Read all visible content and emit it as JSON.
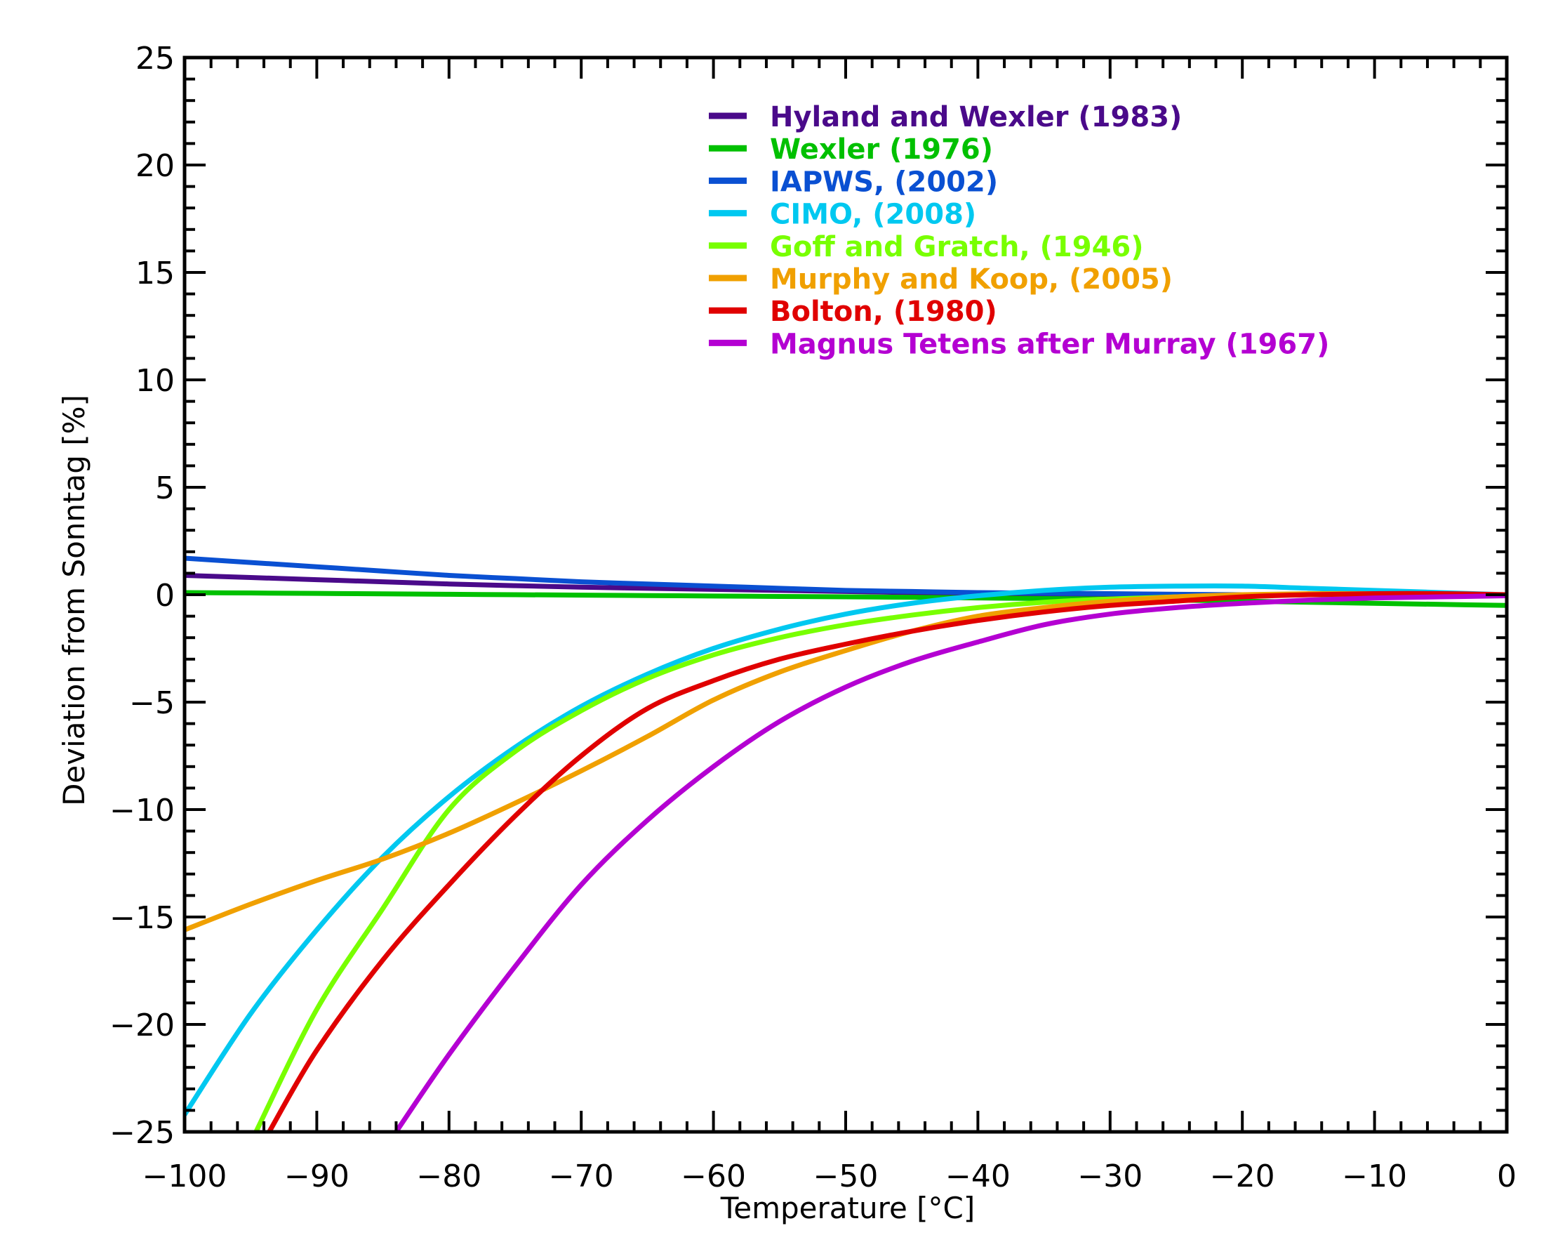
{
  "chart_data": {
    "type": "line",
    "title": "",
    "xlabel": "Temperature [°C]",
    "ylabel": "Deviation from Sonntag [%]",
    "xlim": [
      -100,
      0
    ],
    "ylim": [
      -25,
      25
    ],
    "xticks": [
      -100,
      -90,
      -80,
      -70,
      -60,
      -50,
      -40,
      -30,
      -20,
      -10,
      0
    ],
    "xtick_labels": [
      "−100",
      "−90",
      "−80",
      "−70",
      "−60",
      "−50",
      "−40",
      "−30",
      "−20",
      "−10",
      "0"
    ],
    "yticks": [
      -25,
      -20,
      -15,
      -10,
      -5,
      0,
      5,
      10,
      15,
      20,
      25
    ],
    "ytick_labels": [
      "−25",
      "−20",
      "−15",
      "−10",
      "−5",
      "0",
      "5",
      "10",
      "15",
      "20",
      "25"
    ],
    "x_minor_step": 2,
    "y_minor_step": 1,
    "grid": false,
    "legend_placement": "top-right",
    "x": [
      -100,
      -95,
      -90,
      -85,
      -80,
      -75,
      -70,
      -65,
      -60,
      -55,
      -50,
      -45,
      -40,
      -35,
      -30,
      -25,
      -20,
      -15,
      -10,
      -5,
      0
    ],
    "series": [
      {
        "name": "Hyland and Wexler (1983)",
        "color": "#4a0a8a",
        "values": [
          0.9,
          0.8,
          0.7,
          0.6,
          0.5,
          0.42,
          0.35,
          0.3,
          0.25,
          0.2,
          0.15,
          0.1,
          0.05,
          0.02,
          0,
          0,
          0,
          0,
          0,
          0,
          0
        ]
      },
      {
        "name": "Wexler (1976)",
        "color": "#00c000",
        "values": [
          0.1,
          0.08,
          0.06,
          0.04,
          0.02,
          0,
          -0.02,
          -0.04,
          -0.06,
          -0.08,
          -0.1,
          -0.12,
          -0.15,
          -0.18,
          -0.2,
          -0.25,
          -0.3,
          -0.35,
          -0.4,
          -0.45,
          -0.5
        ]
      },
      {
        "name": "IAPWS, (2002)",
        "color": "#0a50d2",
        "values": [
          1.7,
          1.5,
          1.3,
          1.1,
          0.9,
          0.75,
          0.6,
          0.5,
          0.4,
          0.3,
          0.2,
          0.15,
          0.1,
          0.07,
          0.05,
          0.02,
          0,
          0,
          0,
          0,
          0
        ]
      },
      {
        "name": "CIMO, (2008)",
        "color": "#00c8f0",
        "values": [
          -24.2,
          -19.5,
          -15.6,
          -12.2,
          -9.4,
          -7.1,
          -5.2,
          -3.7,
          -2.5,
          -1.6,
          -0.9,
          -0.4,
          -0.05,
          0.2,
          0.35,
          0.4,
          0.4,
          0.3,
          0.2,
          0.1,
          0
        ]
      },
      {
        "name": "Goff and Gratch, (1946)",
        "color": "#78ff00",
        "start": [
          -94.6,
          -25
        ],
        "values": [
          null,
          null,
          -19.3,
          -14.6,
          -10.0,
          -7.3,
          -5.4,
          -3.9,
          -2.8,
          -2.0,
          -1.4,
          -0.95,
          -0.6,
          -0.35,
          -0.2,
          -0.1,
          -0.05,
          0,
          0,
          0,
          0
        ]
      },
      {
        "name": "Murphy and Koop, (2005)",
        "color": "#f0a000",
        "values": [
          -15.6,
          -14.4,
          -13.3,
          -12.3,
          -11.1,
          -9.7,
          -8.2,
          -6.6,
          -4.9,
          -3.6,
          -2.6,
          -1.7,
          -1.0,
          -0.6,
          -0.3,
          -0.1,
          0,
          0.05,
          0.05,
          0.02,
          0
        ]
      },
      {
        "name": "Bolton, (1980)",
        "color": "#e00000",
        "start": [
          -93.6,
          -25
        ],
        "values": [
          null,
          null,
          -21.2,
          -17.0,
          -13.5,
          -10.3,
          -7.5,
          -5.3,
          -4.0,
          -3.0,
          -2.3,
          -1.7,
          -1.2,
          -0.8,
          -0.5,
          -0.3,
          -0.1,
          0,
          0.05,
          0.05,
          0
        ]
      },
      {
        "name": "Magnus Tetens after Murray (1967)",
        "color": "#b400d2",
        "start": [
          -84,
          -25
        ],
        "values": [
          null,
          null,
          null,
          null,
          -21.4,
          -17.3,
          -13.5,
          -10.5,
          -8.0,
          -5.9,
          -4.3,
          -3.1,
          -2.2,
          -1.4,
          -0.9,
          -0.6,
          -0.4,
          -0.25,
          -0.15,
          -0.1,
          -0.05
        ]
      }
    ]
  }
}
